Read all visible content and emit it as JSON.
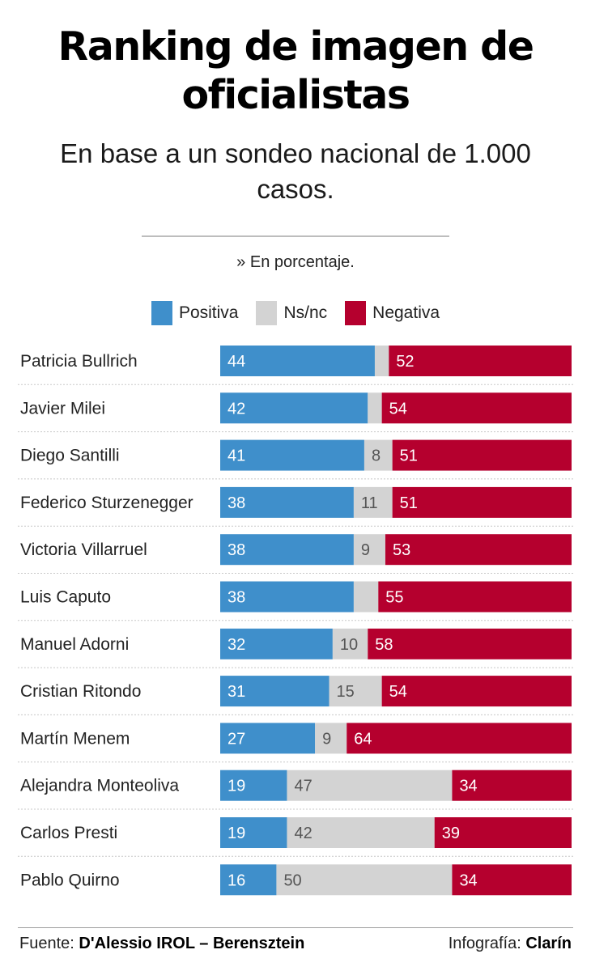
{
  "title": "Ranking de imagen de oficialistas",
  "subtitle": "En base a un sondeo nacional de 1.000 casos.",
  "note": "» En porcentaje.",
  "colors": {
    "positiva": "#3f8fcb",
    "nsnc": "#d3d3d3",
    "negativa": "#b5002e"
  },
  "legend": [
    {
      "label": "Positiva",
      "color_key": "positiva"
    },
    {
      "label": "Ns/nc",
      "color_key": "nsnc"
    },
    {
      "label": "Negativa",
      "color_key": "negativa"
    }
  ],
  "chart_data": {
    "type": "bar",
    "stacked": true,
    "orientation": "horizontal",
    "categories": [
      "Patricia Bullrich",
      "Javier Milei",
      "Diego Santilli",
      "Federico Sturzenegger",
      "Victoria Villarruel",
      "Luis Caputo",
      "Manuel Adorni",
      "Cristian Ritondo",
      "Martín Menem",
      "Alejandra Monteoliva",
      "Carlos Presti",
      "Pablo Quirno"
    ],
    "series": [
      {
        "name": "Positiva",
        "values": [
          44,
          42,
          41,
          38,
          38,
          38,
          32,
          31,
          27,
          19,
          19,
          16
        ]
      },
      {
        "name": "Ns/nc",
        "values": [
          4,
          4,
          8,
          11,
          9,
          7,
          10,
          15,
          9,
          47,
          42,
          50
        ]
      },
      {
        "name": "Negativa",
        "values": [
          52,
          54,
          51,
          51,
          53,
          55,
          58,
          54,
          64,
          34,
          39,
          34
        ]
      }
    ],
    "labels": [
      [
        "44",
        "",
        "52"
      ],
      [
        "42",
        "",
        "54"
      ],
      [
        "41",
        "8",
        "51"
      ],
      [
        "38",
        "11",
        "51"
      ],
      [
        "38",
        "9",
        "53"
      ],
      [
        "38",
        "",
        "55"
      ],
      [
        "32",
        "10",
        "58"
      ],
      [
        "31",
        "15",
        "54"
      ],
      [
        "27",
        "9",
        "64"
      ],
      [
        "19",
        "47",
        "34"
      ],
      [
        "19",
        "42",
        "39"
      ],
      [
        "16",
        "50",
        "34"
      ]
    ],
    "xlim": [
      0,
      100
    ],
    "legend_position": "top"
  },
  "footer": {
    "source_prefix": "Fuente:",
    "source": "D'Alessio IROL – Berensztein",
    "credit_prefix": "Infografía:",
    "credit": "Clarín"
  }
}
